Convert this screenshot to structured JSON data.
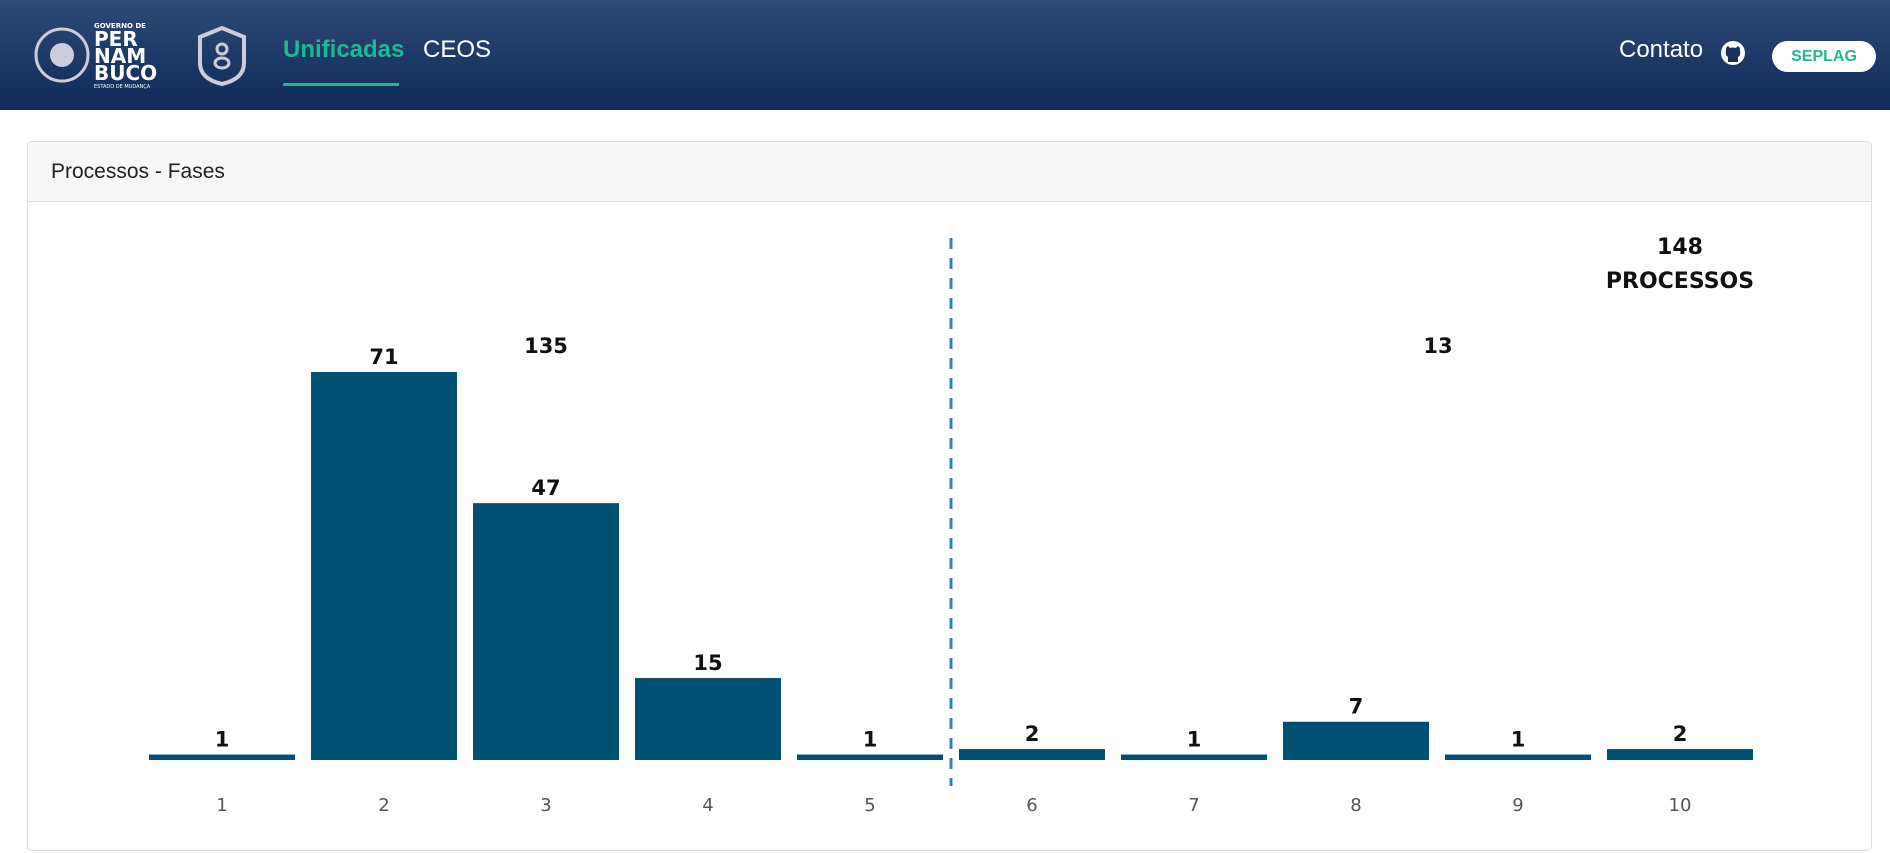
{
  "navbar": {
    "logo": {
      "line1": "GOVERNO DE",
      "line2": "PER",
      "line3": "NAM",
      "line4": "BUCO",
      "line5": "ESTADO DE MUDANÇA"
    },
    "links": [
      "Unificadas",
      "CEOS"
    ],
    "contact": "Contato",
    "button": "SEPLAG"
  },
  "card": {
    "title": "Processos - Fases"
  },
  "chart_data": {
    "type": "bar",
    "categories": [
      "1",
      "2",
      "3",
      "4",
      "5",
      "6",
      "7",
      "8",
      "9",
      "10"
    ],
    "values": [
      1,
      71,
      47,
      15,
      1,
      2,
      1,
      7,
      1,
      2
    ],
    "color": "#005073",
    "group_totals": [
      135,
      13
    ],
    "total": 148,
    "total_label": "PROCESSOS"
  }
}
